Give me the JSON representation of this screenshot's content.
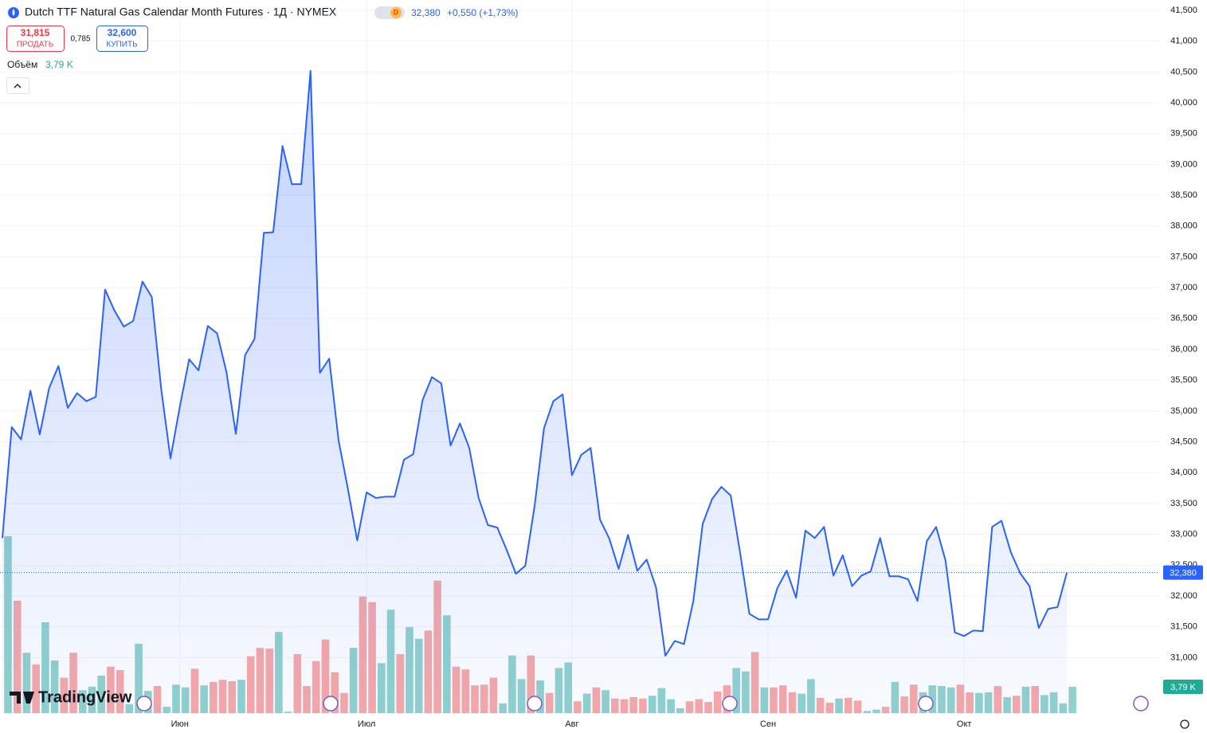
{
  "header": {
    "title": "Dutch TTF Natural Gas Calendar Month Futures · 1Д · NYMEX",
    "interval_badge": "D",
    "price": "32,380",
    "change": "+0,550 (+1,73%)",
    "sell_price": "31,815",
    "sell_label": "ПРОДАТЬ",
    "spread": "0,785",
    "buy_price": "32,600",
    "buy_label": "КУПИТЬ",
    "logo": "TradingView"
  },
  "chart_data": {
    "type": "area",
    "color": "#2962ff",
    "grid": true,
    "categories": [
      null,
      null,
      null,
      null,
      null,
      null,
      null,
      null,
      null,
      null,
      null,
      null,
      null,
      null,
      null,
      null,
      null,
      null,
      null,
      "Июн",
      null,
      null,
      null,
      null,
      null,
      null,
      null,
      null,
      null,
      null,
      null,
      null,
      null,
      null,
      null,
      null,
      null,
      null,
      null,
      "Июл",
      null,
      null,
      null,
      null,
      null,
      null,
      null,
      null,
      null,
      null,
      null,
      null,
      null,
      null,
      null,
      null,
      null,
      null,
      null,
      null,
      null,
      "Авг",
      null,
      null,
      null,
      null,
      null,
      null,
      null,
      null,
      null,
      null,
      null,
      null,
      null,
      null,
      null,
      null,
      null,
      null,
      null,
      null,
      "Сен",
      null,
      null,
      null,
      null,
      null,
      null,
      null,
      null,
      null,
      null,
      null,
      null,
      null,
      null,
      null,
      null,
      null,
      null,
      null,
      null,
      "Окт",
      null,
      null,
      null,
      null,
      null,
      null,
      null,
      null,
      null,
      null,
      null
    ],
    "values": [
      32940,
      34740,
      34540,
      35330,
      34620,
      35370,
      35730,
      35050,
      35290,
      35160,
      35230,
      36970,
      36630,
      36370,
      36460,
      37100,
      36850,
      35370,
      34230,
      35070,
      35840,
      35660,
      36380,
      36260,
      35630,
      34630,
      35910,
      36170,
      37890,
      37900,
      39300,
      38680,
      38680,
      40520,
      35620,
      35850,
      34530,
      33740,
      32900,
      33680,
      33590,
      33610,
      33610,
      34210,
      34300,
      35180,
      35550,
      35450,
      34440,
      34800,
      34400,
      33590,
      33150,
      33110,
      32750,
      32360,
      32490,
      33460,
      34720,
      35160,
      35270,
      33960,
      34290,
      34400,
      33240,
      32930,
      32440,
      32990,
      32410,
      32590,
      32140,
      31030,
      31270,
      31220,
      31920,
      33170,
      33570,
      33770,
      33630,
      32710,
      31710,
      31620,
      31620,
      32130,
      32410,
      31970,
      33060,
      32940,
      33120,
      32330,
      32660,
      32160,
      32330,
      32400,
      32940,
      32320,
      32320,
      32270,
      31920,
      32890,
      33120,
      32580,
      31410,
      31350,
      31440,
      31430,
      33120,
      33220,
      32710,
      32370,
      32160,
      31480,
      31790,
      31820,
      32380
    ],
    "ylim": [
      30100,
      41500
    ],
    "yticks": [
      {
        "value": 31000,
        "label": "31,000"
      },
      {
        "value": 31500,
        "label": "31,500"
      },
      {
        "value": 32000,
        "label": "32,000"
      },
      {
        "value": 32500,
        "label": "32,500"
      },
      {
        "value": 33000,
        "label": "33,000"
      },
      {
        "value": 33500,
        "label": "33,500"
      },
      {
        "value": 34000,
        "label": "34,000"
      },
      {
        "value": 34500,
        "label": "34,500"
      },
      {
        "value": 35000,
        "label": "35,000"
      },
      {
        "value": 35500,
        "label": "35,500"
      },
      {
        "value": 36000,
        "label": "36,000"
      },
      {
        "value": 36500,
        "label": "36,500"
      },
      {
        "value": 37000,
        "label": "37,000"
      },
      {
        "value": 37500,
        "label": "37,500"
      },
      {
        "value": 38000,
        "label": "38,000"
      },
      {
        "value": 38500,
        "label": "38,500"
      },
      {
        "value": 39000,
        "label": "39,000"
      },
      {
        "value": 39500,
        "label": "39,500"
      },
      {
        "value": 40000,
        "label": "40,000"
      },
      {
        "value": 40500,
        "label": "40,500"
      },
      {
        "value": 41000,
        "label": "41,000"
      },
      {
        "value": 41500,
        "label": "41,500"
      }
    ],
    "volume": {
      "name": "Объём",
      "color": "#22ab94",
      "values": [
        25.5,
        16.2,
        8.7,
        7.0,
        13.1,
        7.6,
        5.1,
        8.7,
        3.3,
        3.8,
        5.4,
        6.7,
        6.2,
        1.3,
        10.0,
        3.2,
        3.9,
        0.9,
        4.1,
        3.7,
        6.4,
        4.0,
        4.5,
        4.8,
        4.6,
        4.8,
        8.2,
        9.4,
        9.3,
        11.7,
        0.2,
        8.5,
        3.9,
        7.5,
        10.6,
        5.9,
        2.9,
        9.4,
        16.8,
        16.0,
        7.2,
        14.9,
        8.5,
        12.4,
        10.7,
        11.9,
        19.1,
        14.1,
        6.7,
        6.3,
        4.0,
        4.1,
        5.1,
        1.4,
        8.3,
        4.9,
        8.3,
        4.7,
        2.9,
        6.5,
        7.3,
        1.7,
        2.8,
        3.7,
        3.3,
        2.1,
        2.0,
        2.3,
        2.1,
        2.5,
        3.6,
        2.0,
        0.7,
        1.7,
        2.0,
        1.6,
        3.1,
        4.0,
        6.5,
        6.0,
        8.8,
        3.7,
        3.7,
        4.0,
        3.0,
        2.8,
        4.9,
        2.2,
        1.5,
        2.1,
        2.2,
        1.8,
        0.3,
        0.5,
        0.9,
        4.5,
        2.4,
        4.1,
        3.0,
        4.0,
        3.9,
        3.7,
        4.1,
        3.0,
        2.9,
        3.0,
        3.9,
        2.3,
        2.5,
        3.8,
        3.9,
        2.6,
        3.0,
        1.4,
        3.79
      ],
      "value_labels": [
        null,
        null,
        null,
        null,
        null,
        null,
        null,
        null,
        null,
        null,
        null,
        null,
        null,
        null,
        null,
        null,
        null,
        null,
        null,
        null,
        null,
        null,
        null,
        null,
        null,
        null,
        null,
        null,
        null,
        null,
        null,
        null,
        null,
        null,
        null,
        null,
        null,
        null,
        null,
        null,
        null,
        null,
        null,
        null,
        null,
        null,
        null,
        null,
        null,
        null,
        null,
        null,
        null,
        null,
        null,
        null,
        null,
        null,
        null,
        null,
        null,
        null,
        null,
        null,
        null,
        null,
        null,
        null,
        null,
        null,
        null,
        null,
        null,
        null,
        null,
        null,
        null,
        null,
        null,
        null,
        null,
        null,
        null,
        null,
        null,
        null,
        null,
        null,
        null,
        null,
        null,
        null,
        null,
        null,
        null,
        null,
        null,
        null,
        null,
        null,
        null,
        null,
        null,
        null,
        null,
        null,
        null,
        null,
        null,
        null,
        null,
        null,
        null,
        null,
        "3,79 K"
      ],
      "colors": [
        "#92d2cc",
        "#f7a9a7",
        "#92d2cc",
        "#f7a9a7",
        "#92d2cc",
        "#92d2cc",
        "#f7a9a7",
        "#f7a9a7",
        "#92d2cc",
        "#92d2cc",
        "#92d2cc",
        "#f7a9a7",
        "#f7a9a7",
        "#92d2cc",
        "#92d2cc",
        "#92d2cc",
        "#f7a9a7",
        "#92d2cc",
        "#92d2cc",
        "#92d2cc",
        "#f7a9a7",
        "#92d2cc",
        "#f7a9a7",
        "#f7a9a7",
        "#f7a9a7",
        "#92d2cc",
        "#f7a9a7",
        "#f7a9a7",
        "#f7a9a7",
        "#92d2cc",
        "#92d2cc",
        "#f7a9a7",
        "#f7a9a7",
        "#f7a9a7",
        "#f7a9a7",
        "#f7a9a7",
        "#f7a9a7",
        "#92d2cc",
        "#f7a9a7",
        "#f7a9a7",
        "#92d2cc",
        "#92d2cc",
        "#f7a9a7",
        "#92d2cc",
        "#92d2cc",
        "#f7a9a7",
        "#f7a9a7",
        "#92d2cc",
        "#f7a9a7",
        "#f7a9a7",
        "#f7a9a7",
        "#f7a9a7",
        "#f7a9a7",
        "#92d2cc",
        "#92d2cc",
        "#92d2cc",
        "#f7a9a7",
        "#92d2cc",
        "#f7a9a7",
        "#92d2cc",
        "#92d2cc",
        "#f7a9a7",
        "#92d2cc",
        "#f7a9a7",
        "#92d2cc",
        "#f7a9a7",
        "#f7a9a7",
        "#f7a9a7",
        "#f7a9a7",
        "#92d2cc",
        "#92d2cc",
        "#92d2cc",
        "#92d2cc",
        "#f7a9a7",
        "#f7a9a7",
        "#f7a9a7",
        "#f7a9a7",
        "#f7a9a7",
        "#92d2cc",
        "#92d2cc",
        "#f7a9a7",
        "#92d2cc",
        "#f7a9a7",
        "#f7a9a7",
        "#f7a9a7",
        "#92d2cc",
        "#92d2cc",
        "#f7a9a7",
        "#f7a9a7",
        "#92d2cc",
        "#f7a9a7",
        "#f7a9a7",
        "#92d2cc",
        "#92d2cc",
        "#f7a9a7",
        "#92d2cc",
        "#f7a9a7",
        "#f7a9a7",
        "#92d2cc",
        "#92d2cc",
        "#92d2cc",
        "#92d2cc",
        "#f7a9a7",
        "#f7a9a7",
        "#92d2cc",
        "#92d2cc",
        "#f7a9a7",
        "#92d2cc",
        "#f7a9a7",
        "#92d2cc",
        "#f7a9a7",
        "#92d2cc",
        "#92d2cc",
        "#92d2cc",
        "#92d2cc"
      ]
    }
  }
}
